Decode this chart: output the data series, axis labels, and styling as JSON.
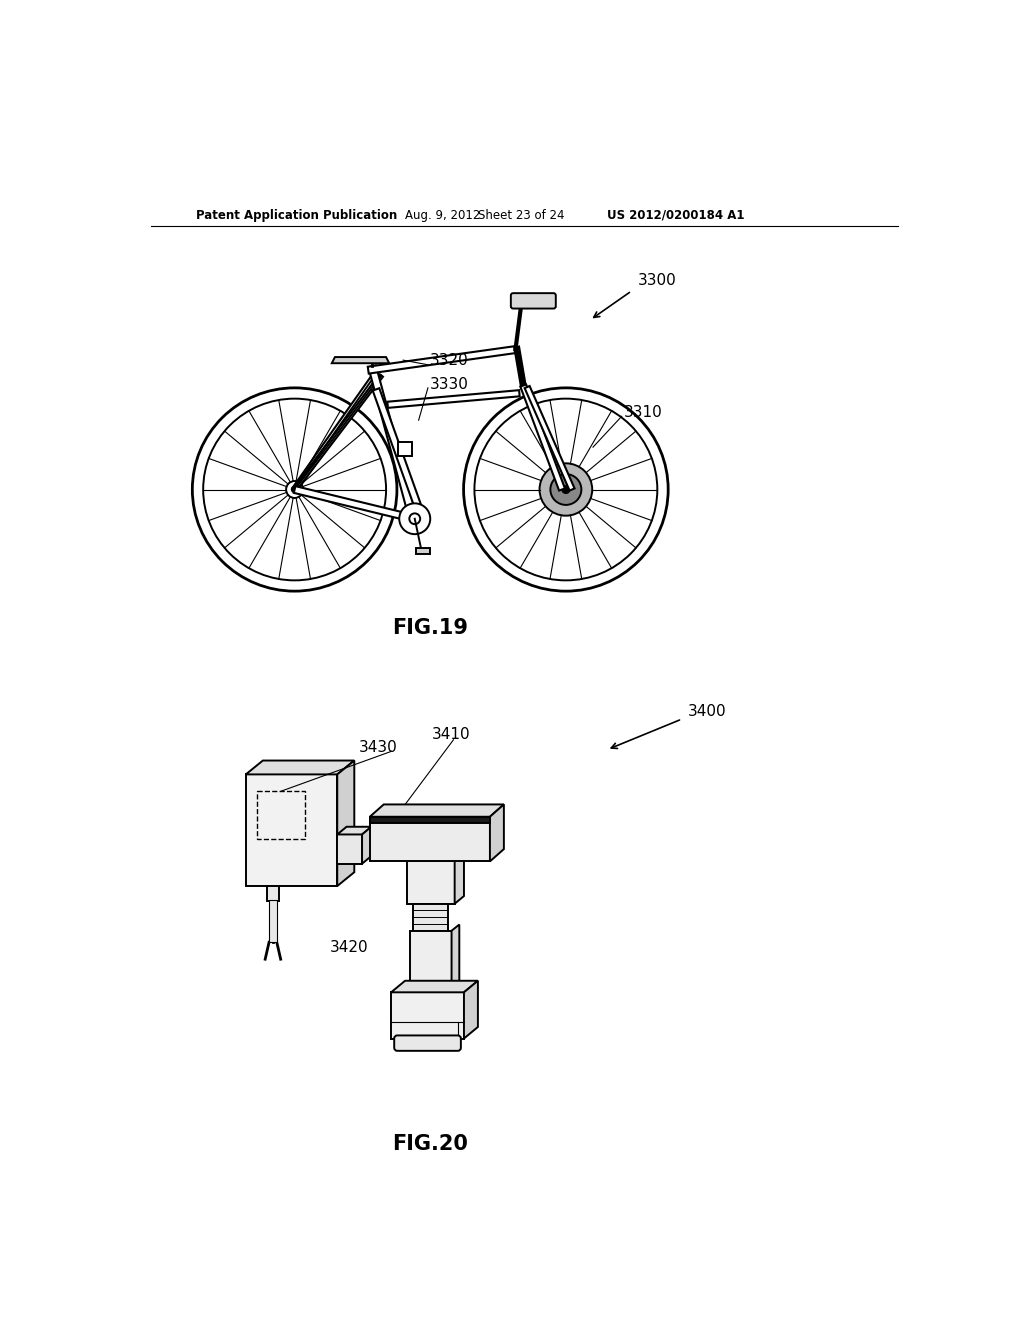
{
  "background_color": "#ffffff",
  "header_text": "Patent Application Publication",
  "header_date": "Aug. 9, 2012",
  "header_sheet": "Sheet 23 of 24",
  "header_patent": "US 2012/0200184 A1",
  "fig19_label": "FIG.19",
  "fig20_label": "FIG.20",
  "fig19_ref_3300": "3300",
  "fig19_ref_3310": "3310",
  "fig19_ref_3320": "3320",
  "fig19_ref_3330": "3330",
  "fig20_ref_3400": "3400",
  "fig20_ref_3410": "3410",
  "fig20_ref_3420": "3420",
  "fig20_ref_3430": "3430"
}
